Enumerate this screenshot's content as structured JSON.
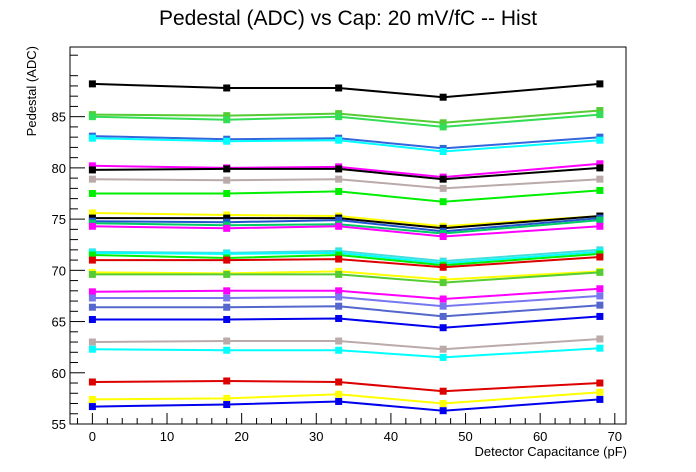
{
  "chart_data": {
    "type": "line",
    "title": "Pedestal (ADC) vs Cap: 20 mV/fC -- Hist",
    "xlabel": "Detector Capacitance (pF)",
    "ylabel": "Pedestal (ADC)",
    "xlim": [
      -3,
      71.5
    ],
    "ylim": [
      55,
      91.8
    ],
    "x_ticks": [
      0,
      10,
      20,
      30,
      40,
      50,
      60,
      70
    ],
    "y_ticks": [
      55,
      60,
      65,
      70,
      75,
      80,
      85
    ],
    "x": [
      0,
      18,
      33,
      47,
      68
    ],
    "marker": "square",
    "grid": false,
    "legend": "none",
    "series": [
      {
        "color": "#000000",
        "values": [
          88.2,
          87.8,
          87.8,
          86.9,
          88.2
        ]
      },
      {
        "color": "#55cc33",
        "values": [
          85.2,
          85.1,
          85.3,
          84.4,
          85.6
        ]
      },
      {
        "color": "#33dd55",
        "values": [
          85.0,
          84.7,
          85.0,
          84.0,
          85.2
        ]
      },
      {
        "color": "#3366dd",
        "values": [
          83.1,
          82.8,
          82.9,
          81.9,
          83.0
        ]
      },
      {
        "color": "#00ffff",
        "values": [
          82.9,
          82.6,
          82.7,
          81.6,
          82.7
        ]
      },
      {
        "color": "#ff00ff",
        "values": [
          80.2,
          80.0,
          80.1,
          79.1,
          80.4
        ]
      },
      {
        "color": "#000000",
        "values": [
          79.8,
          79.9,
          79.9,
          78.9,
          80.0
        ]
      },
      {
        "color": "#bbaaaa",
        "values": [
          78.9,
          78.8,
          78.9,
          78.0,
          78.9
        ]
      },
      {
        "color": "#00ee00",
        "values": [
          77.5,
          77.5,
          77.7,
          76.7,
          77.8
        ]
      },
      {
        "color": "#ffff00",
        "values": [
          75.6,
          75.4,
          75.3,
          74.3,
          75.3
        ]
      },
      {
        "color": "#000000",
        "values": [
          75.1,
          75.1,
          75.1,
          74.1,
          75.3
        ]
      },
      {
        "color": "#2255cc",
        "values": [
          74.8,
          74.7,
          74.9,
          73.8,
          75.1
        ]
      },
      {
        "color": "#00cc66",
        "values": [
          74.6,
          74.4,
          74.5,
          73.6,
          74.9
        ]
      },
      {
        "color": "#ff00ff",
        "values": [
          74.3,
          74.1,
          74.3,
          73.3,
          74.3
        ]
      },
      {
        "color": "#44dddd",
        "values": [
          71.8,
          71.7,
          71.9,
          70.9,
          72.0
        ]
      },
      {
        "color": "#00ffff",
        "values": [
          71.7,
          71.6,
          71.7,
          70.7,
          71.8
        ]
      },
      {
        "color": "#00ee00",
        "values": [
          71.5,
          71.2,
          71.5,
          70.5,
          71.6
        ]
      },
      {
        "color": "#dd0000",
        "values": [
          71.0,
          71.0,
          71.1,
          70.3,
          71.3
        ]
      },
      {
        "color": "#ffff00",
        "values": [
          69.8,
          69.7,
          69.9,
          69.1,
          69.9
        ]
      },
      {
        "color": "#55cc33",
        "values": [
          69.6,
          69.6,
          69.6,
          68.8,
          69.8
        ]
      },
      {
        "color": "#ff00ff",
        "values": [
          67.9,
          68.0,
          68.0,
          67.2,
          68.2
        ]
      },
      {
        "color": "#7777ee",
        "values": [
          67.3,
          67.3,
          67.4,
          66.5,
          67.5
        ]
      },
      {
        "color": "#5566cc",
        "values": [
          66.4,
          66.4,
          66.5,
          65.5,
          66.6
        ]
      },
      {
        "color": "#0000ee",
        "values": [
          65.2,
          65.2,
          65.3,
          64.4,
          65.5
        ]
      },
      {
        "color": "#bbaaaa",
        "values": [
          63.0,
          63.1,
          63.1,
          62.3,
          63.3
        ]
      },
      {
        "color": "#00ffff",
        "values": [
          62.3,
          62.2,
          62.2,
          61.5,
          62.4
        ]
      },
      {
        "color": "#dd0000",
        "values": [
          59.1,
          59.2,
          59.1,
          58.2,
          59.0
        ]
      },
      {
        "color": "#ffff00",
        "values": [
          57.4,
          57.5,
          57.9,
          57.0,
          58.1
        ]
      },
      {
        "color": "#0000ee",
        "values": [
          56.7,
          56.9,
          57.2,
          56.3,
          57.4
        ]
      }
    ]
  }
}
